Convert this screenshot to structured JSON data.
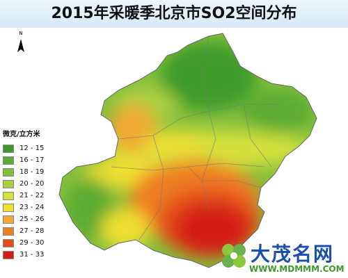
{
  "title": "2015年采暖季北京市SO2空间分布",
  "north_label": "N",
  "legend": {
    "title": "微克/立方米",
    "items": [
      {
        "label": "12 - 15",
        "color": "#3d9b2c"
      },
      {
        "label": "16 - 17",
        "color": "#5caa32"
      },
      {
        "label": "18 - 19",
        "color": "#82c03c"
      },
      {
        "label": "20 - 20",
        "color": "#aad042"
      },
      {
        "label": "21 - 22",
        "color": "#d4e03c"
      },
      {
        "label": "23 - 24",
        "color": "#f0e030"
      },
      {
        "label": "25 - 26",
        "color": "#f0a832"
      },
      {
        "label": "27 - 28",
        "color": "#ee7e24"
      },
      {
        "label": "29 - 30",
        "color": "#e44e1a"
      },
      {
        "label": "31 - 33",
        "color": "#d41e12"
      }
    ]
  },
  "watermark": {
    "name": "大茂名网",
    "url": "WWW.MDMMM.COM"
  }
}
